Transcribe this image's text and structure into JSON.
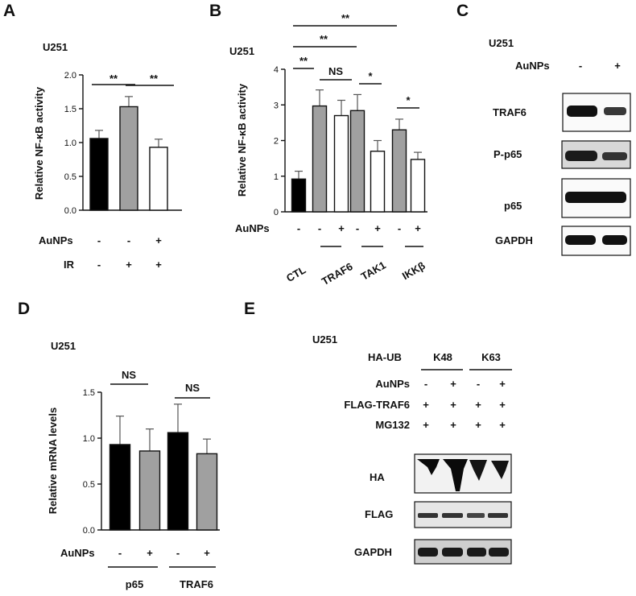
{
  "panels": {
    "A": {
      "letter": "A",
      "cell_line": "U251",
      "row_labels": [
        "AuNPs",
        "IR"
      ],
      "columns": [
        [
          "-",
          "-"
        ],
        [
          "-",
          "+"
        ],
        [
          "+",
          "+"
        ]
      ],
      "significance": [
        "**",
        "**"
      ]
    },
    "B": {
      "letter": "B",
      "cell_line": "U251",
      "row_label": "AuNPs",
      "signs": [
        "-",
        "-",
        "+",
        "-",
        "+",
        "-",
        "+"
      ],
      "group_labels": [
        "CTL",
        "TRAF6",
        "TAK1",
        "IKKβ"
      ],
      "significance": [
        "**",
        "**",
        "**",
        "NS",
        "*",
        "*"
      ]
    },
    "C": {
      "letter": "C",
      "cell_line": "U251",
      "header_label": "AuNPs",
      "header_signs": [
        "-",
        "+"
      ],
      "blots": [
        "TRAF6",
        "P-p65",
        "p65",
        "GAPDH"
      ]
    },
    "D": {
      "letter": "D",
      "cell_line": "U251",
      "row_label": "AuNPs",
      "signs": [
        "-",
        "+",
        "-",
        "+"
      ],
      "group_labels": [
        "p65",
        "TRAF6"
      ],
      "significance": [
        "NS",
        "NS"
      ]
    },
    "E": {
      "letter": "E",
      "cell_line": "U251",
      "ha_ub_label": "HA-UB",
      "groups": [
        "K48",
        "K63"
      ],
      "rows": [
        {
          "label": "AuNPs",
          "signs": [
            "-",
            "+",
            "-",
            "+"
          ]
        },
        {
          "label": "FLAG-TRAF6",
          "signs": [
            "+",
            "+",
            "+",
            "+"
          ]
        },
        {
          "label": "MG132",
          "signs": [
            "+",
            "+",
            "+",
            "+"
          ]
        }
      ],
      "blots": [
        "HA",
        "FLAG",
        "GAPDH"
      ]
    }
  },
  "chart_data": [
    {
      "panel": "A",
      "type": "bar",
      "ylabel": "Relative NF-κB activity",
      "ylim": [
        0,
        2.0
      ],
      "yticks": [
        "0.0",
        "0.5",
        "1.0",
        "1.5",
        "2.0"
      ],
      "values": [
        1.06,
        1.53,
        0.93
      ],
      "errors": [
        0.12,
        0.15,
        0.12
      ],
      "fills": [
        "#000000",
        "#a0a0a0",
        "#ffffff"
      ]
    },
    {
      "panel": "B",
      "type": "bar",
      "ylabel": "Relative NF-κB activity",
      "ylim": [
        0,
        4
      ],
      "yticks": [
        "0",
        "1",
        "2",
        "3",
        "4"
      ],
      "values": [
        0.92,
        2.97,
        2.7,
        2.84,
        1.7,
        2.3,
        1.47
      ],
      "errors": [
        0.22,
        0.45,
        0.43,
        0.45,
        0.3,
        0.3,
        0.2
      ],
      "fills": [
        "#000000",
        "#a0a0a0",
        "#ffffff",
        "#a0a0a0",
        "#ffffff",
        "#a0a0a0",
        "#ffffff"
      ]
    },
    {
      "panel": "D",
      "type": "bar",
      "ylabel": "Relative mRNA levels",
      "ylim": [
        0,
        1.5
      ],
      "yticks": [
        "0.0",
        "0.5",
        "1.0",
        "1.5"
      ],
      "values": [
        0.93,
        0.86,
        1.06,
        0.83
      ],
      "errors": [
        0.31,
        0.24,
        0.31,
        0.16
      ],
      "fills": [
        "#000000",
        "#a0a0a0",
        "#000000",
        "#a0a0a0"
      ]
    }
  ]
}
